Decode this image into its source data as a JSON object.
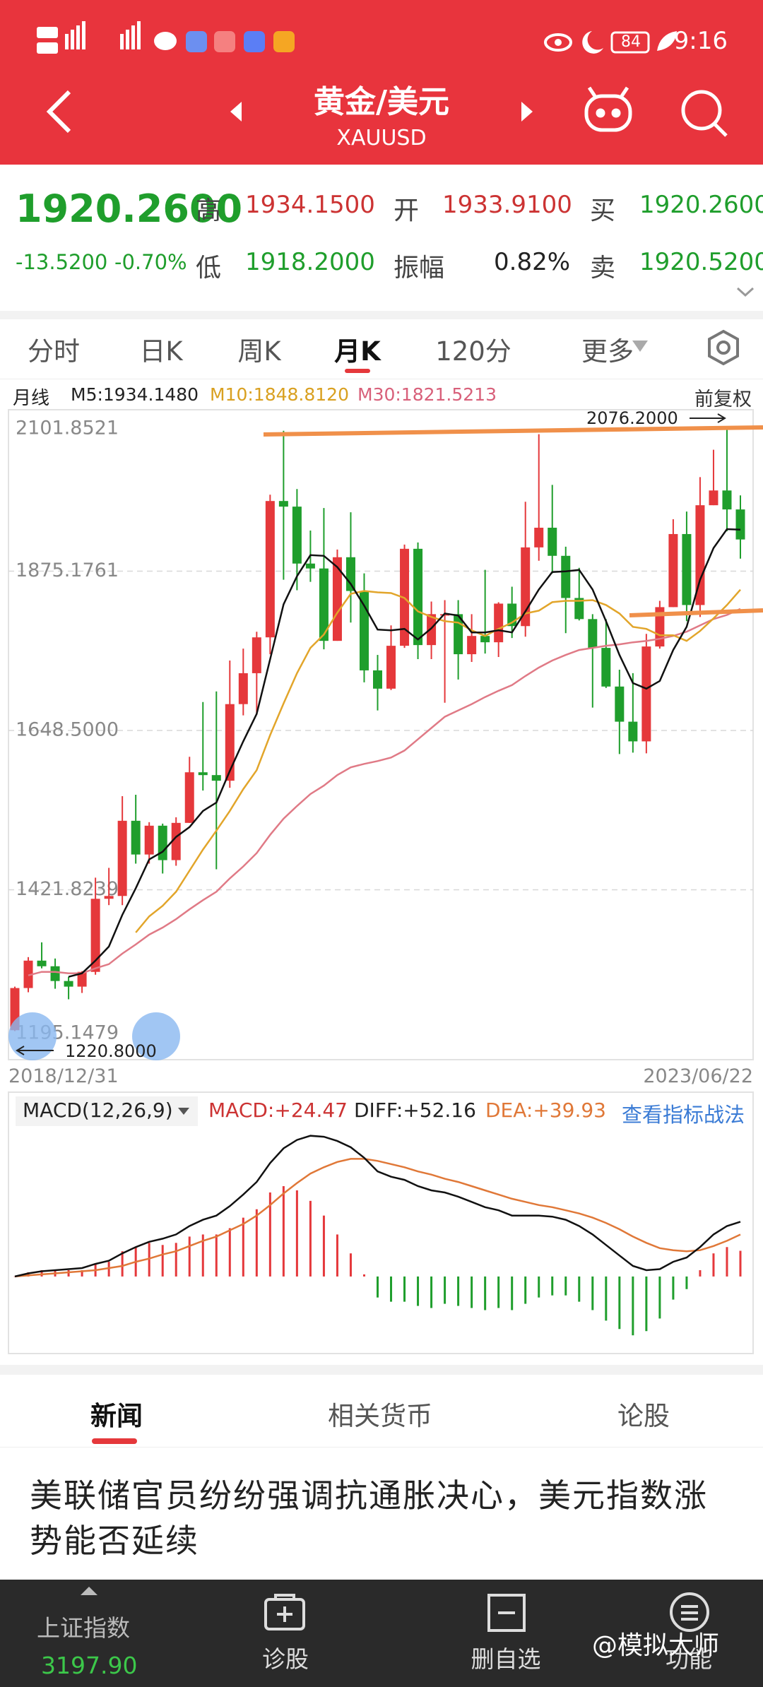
{
  "status_bar": {
    "time": "9:16",
    "battery": "84"
  },
  "header": {
    "title": "黄金/美元",
    "symbol": "XAUUSD"
  },
  "quote": {
    "price": "1920.2600",
    "change": "-13.5200",
    "change_pct": "-0.70%",
    "fields": [
      {
        "label": "高",
        "value": "1934.1500"
      },
      {
        "label": "开",
        "value": "1933.9100"
      },
      {
        "label": "买",
        "value": "1920.2600"
      },
      {
        "label": "低",
        "value": "1918.2000"
      },
      {
        "label": "振幅",
        "value": "0.82%"
      },
      {
        "label": "卖",
        "value": "1920.5200"
      }
    ]
  },
  "tabs": [
    "分时",
    "日K",
    "周K",
    "月K",
    "120分",
    "更多"
  ],
  "chart_data": {
    "type": "candlestick",
    "period": "月线",
    "ma_labels": [
      "M5:1934.1480",
      "M10:1848.8120",
      "M30:1821.5213"
    ],
    "adjust": "前复权",
    "x_start": "2018/12/31",
    "x_end": "2023/06/22",
    "ylim": [
      1195.1479,
      2101.8521
    ],
    "yticks": [
      2101.8521,
      1875.1761,
      {
        "value": 1648.5,
        "label": "1648.5000"
      },
      1421.8239,
      1195.1479
    ],
    "grid": true,
    "max_label": "2076.2000",
    "min_label": "1220.8000",
    "up_color": "#e5383b",
    "down_color": "#1f9e2c",
    "ma_colors": [
      "#111111",
      "#e2a52a",
      "#e07a86"
    ],
    "open": [
      1222,
      1282,
      1321,
      1313,
      1292,
      1284,
      1305,
      1409,
      1413,
      1520,
      1472,
      1513,
      1464,
      1517,
      1589,
      1585,
      1577,
      1686,
      1730,
      1781,
      1975,
      1967,
      1886,
      1879,
      1776,
      1895,
      1847,
      1734,
      1708,
      1769,
      1907,
      1770,
      1814,
      1814,
      1757,
      1783,
      1774,
      1829,
      1797,
      1909,
      1937,
      1897,
      1837,
      1807,
      1766,
      1711,
      1661,
      1633,
      1768,
      1824,
      1928,
      1827,
      1969,
      1990,
      1963
    ],
    "high": [
      1284,
      1326,
      1347,
      1324,
      1298,
      1306,
      1439,
      1453,
      1555,
      1557,
      1518,
      1516,
      1525,
      1611,
      1689,
      1704,
      1748,
      1765,
      1789,
      1984,
      2075,
      1992,
      1933,
      1965,
      1906,
      1959,
      1872,
      1756,
      1798,
      1913,
      1916,
      1832,
      1834,
      1834,
      1814,
      1877,
      1831,
      1853,
      1974,
      2070,
      1998,
      1910,
      1880,
      1814,
      1807,
      1735,
      1730,
      1786,
      1833,
      1949,
      1960,
      2009,
      2048,
      2076.2,
      1983
    ],
    "low": [
      1220.8,
      1276,
      1310,
      1281,
      1266,
      1275,
      1301,
      1400,
      1400,
      1459,
      1459,
      1445,
      1456,
      1517,
      1563,
      1451,
      1567,
      1670,
      1671,
      1757,
      1863,
      1848,
      1860,
      1764,
      1776,
      1802,
      1717,
      1677,
      1706,
      1766,
      1750,
      1750,
      1688,
      1721,
      1746,
      1758,
      1753,
      1780,
      1782,
      1890,
      1872,
      1787,
      1805,
      1681,
      1709,
      1615,
      1617,
      1616,
      1765,
      1824,
      1804,
      1810,
      1969,
      1932,
      1893
    ],
    "close": [
      1282,
      1321,
      1313,
      1292,
      1284,
      1305,
      1409,
      1413,
      1520,
      1472,
      1513,
      1464,
      1517,
      1589,
      1585,
      1577,
      1686,
      1730,
      1781,
      1975,
      1967,
      1886,
      1879,
      1776,
      1895,
      1847,
      1734,
      1708,
      1769,
      1907,
      1770,
      1814,
      1814,
      1757,
      1783,
      1774,
      1829,
      1797,
      1909,
      1937,
      1897,
      1837,
      1807,
      1766,
      1711,
      1661,
      1633,
      1768,
      1824,
      1928,
      1827,
      1969,
      1990,
      1963,
      1920.26
    ],
    "ma5": [
      null,
      null,
      null,
      null,
      1298,
      1303,
      1321,
      1341,
      1386,
      1424,
      1465,
      1476,
      1497,
      1511,
      1534,
      1546,
      1591,
      1633,
      1672,
      1750,
      1828,
      1868,
      1898,
      1897,
      1881,
      1857,
      1826,
      1792,
      1791,
      1793,
      1778,
      1794,
      1815,
      1812,
      1788,
      1788,
      1791,
      1788,
      1818,
      1849,
      1874,
      1875,
      1877,
      1849,
      1804,
      1756,
      1716,
      1708,
      1719,
      1763,
      1796,
      1863,
      1908,
      1935,
      1934.148
    ],
    "ma10": [
      null,
      null,
      null,
      null,
      null,
      null,
      null,
      null,
      null,
      1361,
      1384,
      1399,
      1419,
      1449,
      1479,
      1506,
      1534,
      1565,
      1592,
      1642,
      1687,
      1730,
      1766,
      1785,
      1816,
      1843,
      1847,
      1845,
      1844,
      1837,
      1818,
      1810,
      1804,
      1802,
      1791,
      1783,
      1793,
      1802,
      1815,
      1819,
      1831,
      1833,
      1833,
      1834,
      1827,
      1815,
      1796,
      1793,
      1784,
      1784,
      1776,
      1790,
      1808,
      1827,
      1848.812
    ],
    "ma30": [
      null,
      1300,
      1305,
      1305,
      1303,
      1303,
      1310,
      1316,
      1331,
      1344,
      1358,
      1368,
      1380,
      1394,
      1407,
      1419,
      1438,
      1455,
      1474,
      1500,
      1523,
      1541,
      1558,
      1570,
      1585,
      1596,
      1601,
      1605,
      1610,
      1620,
      1636,
      1652,
      1668,
      1677,
      1686,
      1696,
      1705,
      1713,
      1726,
      1738,
      1748,
      1756,
      1763,
      1766,
      1769,
      1771,
      1774,
      1776,
      1779,
      1783,
      1789,
      1798,
      1807,
      1813,
      1821.5213
    ]
  },
  "macd": {
    "type": "macd",
    "label": "MACD(12,26,9)",
    "macd_label": "MACD:+24.47",
    "diff_label": "DIFF:+52.16",
    "dea_label": "DEA:+39.93",
    "link": "查看指标战法",
    "ylim": [
      -70,
      160
    ],
    "diff_color": "#111111",
    "dea_color": "#e07838",
    "diff": [
      0,
      3,
      5,
      6,
      7,
      8,
      12,
      15,
      22,
      28,
      33,
      36,
      40,
      48,
      54,
      58,
      67,
      78,
      90,
      108,
      122,
      130,
      134,
      133,
      129,
      123,
      113,
      100,
      95,
      92,
      86,
      82,
      80,
      76,
      71,
      66,
      63,
      58,
      58,
      58,
      57,
      54,
      48,
      40,
      30,
      20,
      10,
      6,
      7,
      14,
      18,
      28,
      40,
      48,
      52.16
    ],
    "dea": [
      0,
      1,
      2,
      3,
      4,
      5,
      6,
      8,
      10,
      14,
      17,
      21,
      24,
      29,
      34,
      38,
      44,
      50,
      58,
      68,
      79,
      89,
      98,
      104,
      109,
      112,
      112,
      110,
      107,
      104,
      100,
      97,
      93,
      90,
      86,
      82,
      78,
      74,
      71,
      68,
      66,
      63,
      60,
      56,
      51,
      45,
      38,
      32,
      27,
      25,
      24,
      25,
      29,
      34,
      39.93
    ],
    "hist": [
      0,
      4,
      6,
      6,
      6,
      6,
      12,
      14,
      24,
      28,
      32,
      30,
      32,
      38,
      40,
      40,
      46,
      56,
      64,
      80,
      86,
      82,
      72,
      58,
      40,
      22,
      2,
      -20,
      -24,
      -24,
      -28,
      -30,
      -26,
      -28,
      -30,
      -32,
      -30,
      -32,
      -26,
      -20,
      -18,
      -18,
      -24,
      -32,
      -42,
      -50,
      -56,
      -52,
      -40,
      -22,
      -12,
      6,
      22,
      28,
      24.47
    ]
  },
  "news": {
    "tabs": [
      "新闻",
      "相关货币",
      "论股"
    ],
    "headline": "美联储官员纷纷强调抗通胀决心，美元指数涨势能否延续"
  },
  "bottom_bar": {
    "index_name": "上证指数",
    "index_value": "3197.90",
    "items": [
      "诊股",
      "删自选",
      "功能"
    ]
  },
  "watermark": "@模拟大师"
}
